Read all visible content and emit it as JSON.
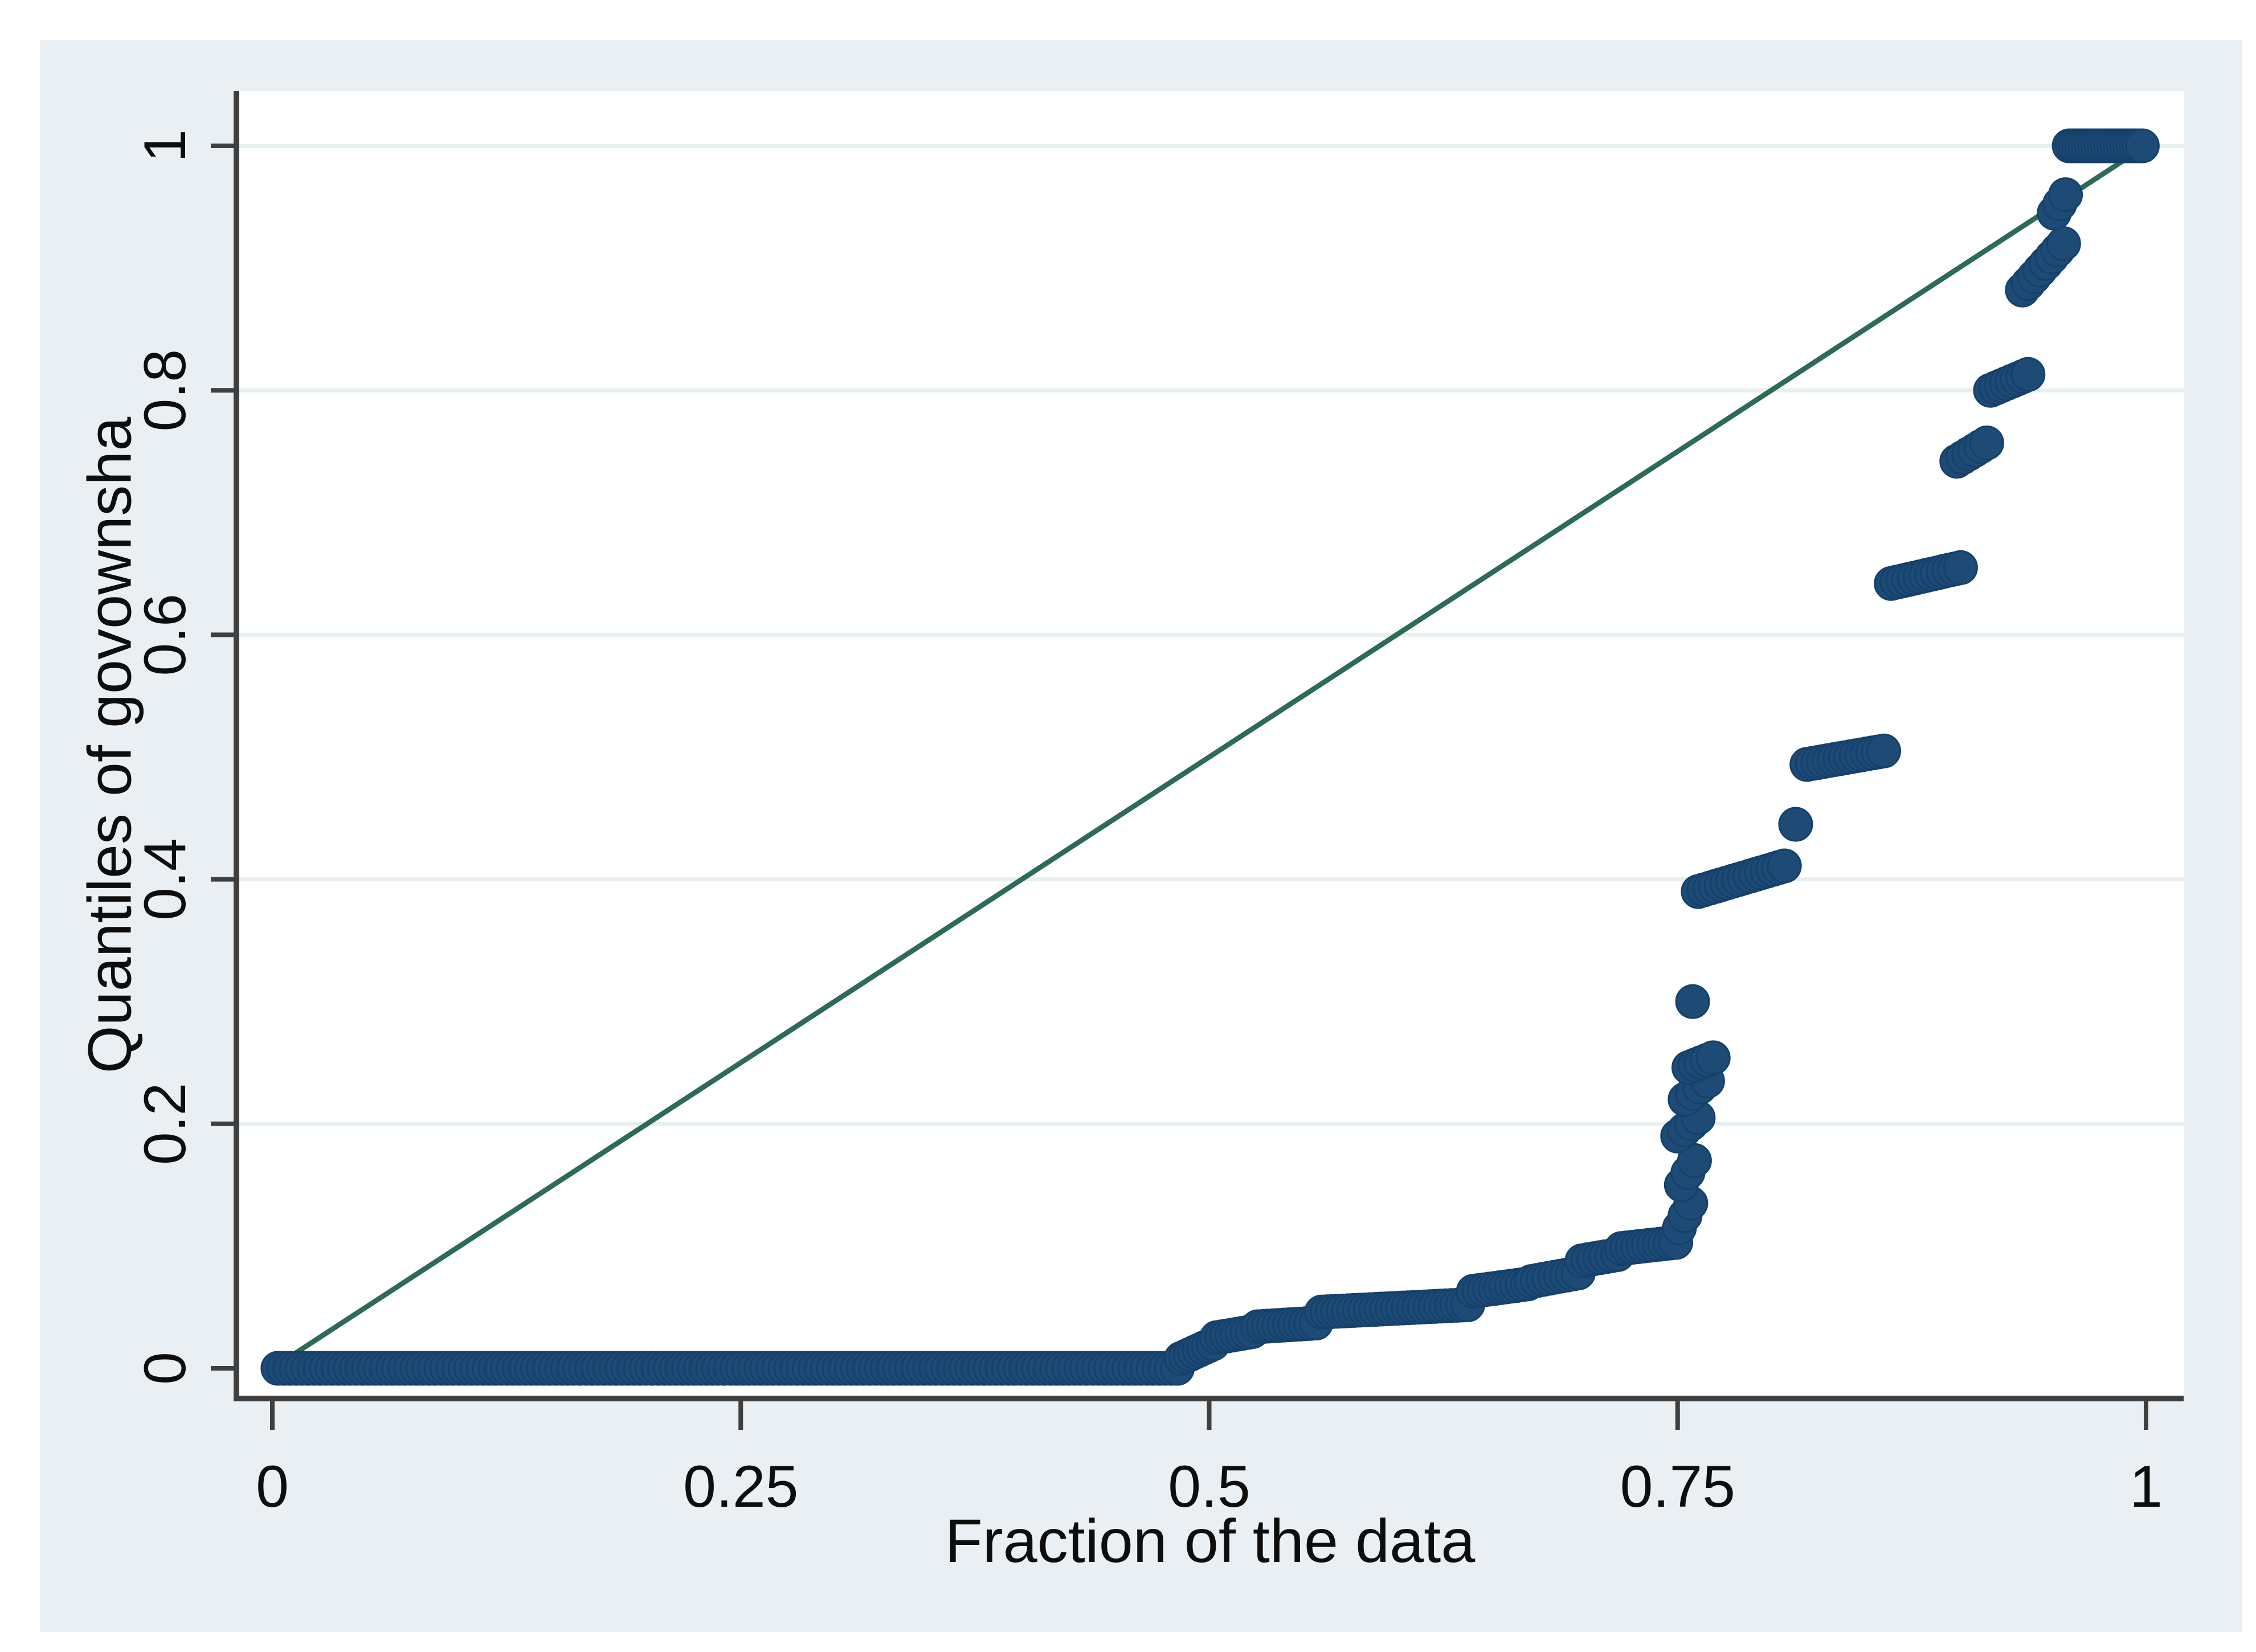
{
  "page": {
    "background": "#ffffff",
    "canvas_background": "#e9eff2",
    "plot_background": "#ffffff",
    "axis_color": "#3f3f3f",
    "grid_color": "#e7eff2",
    "text_color": "#0d0d0d"
  },
  "chart_data": {
    "type": "scatter",
    "subtype": "quantile-plot",
    "title": "",
    "xlabel": "Fraction of the data",
    "ylabel": "Quantiles of govownsha",
    "xlim": [
      0,
      1
    ],
    "ylim": [
      0,
      1
    ],
    "x_ticks": [
      0,
      0.25,
      0.5,
      0.75,
      1
    ],
    "x_tick_labels": [
      "0",
      "0.25",
      "0.5",
      "0.75",
      "1"
    ],
    "y_ticks": [
      0,
      0.2,
      0.4,
      0.6,
      0.8,
      1
    ],
    "y_tick_labels": [
      "0",
      "0.2",
      "0.4",
      "0.6",
      "0.8",
      "1"
    ],
    "grid": "horizontal-only",
    "legend": "none",
    "reference_line": {
      "name": "45-degree reference line (y = x)",
      "from": [
        0,
        0
      ],
      "to": [
        1,
        1
      ],
      "color": "#2d6a57"
    },
    "series": [
      {
        "name": "govownsha quantiles",
        "marker": "filled-circle",
        "color": "#1d4b76",
        "marker_edge_color": "#15406b",
        "description": "Empirical quantile step function: about 48% of the data equals 0; values rise slowly to ~0.10 by the 75th percentile, then jump through plateaus near 0.2, 0.25, 0.4, 0.5, 0.65, 0.75, 0.8 and 0.9, reaching 1.0 for roughly the top 4% of the data.",
        "segments": [
          {
            "f0": 0.003,
            "f1": 0.483,
            "q0": 0.0,
            "q1": 0.0,
            "n": 150
          },
          {
            "f0": 0.485,
            "f1": 0.502,
            "q0": 0.008,
            "q1": 0.02,
            "n": 8
          },
          {
            "f0": 0.504,
            "f1": 0.523,
            "q0": 0.025,
            "q1": 0.03,
            "n": 8
          },
          {
            "f0": 0.526,
            "f1": 0.557,
            "q0": 0.034,
            "q1": 0.037,
            "n": 12
          },
          {
            "f0": 0.56,
            "f1": 0.638,
            "q0": 0.046,
            "q1": 0.052,
            "n": 28
          },
          {
            "f0": 0.641,
            "f1": 0.67,
            "q0": 0.063,
            "q1": 0.069,
            "n": 11
          },
          {
            "f0": 0.672,
            "f1": 0.697,
            "q0": 0.071,
            "q1": 0.078,
            "n": 9
          },
          {
            "f0": 0.699,
            "f1": 0.718,
            "q0": 0.088,
            "q1": 0.093,
            "n": 7
          },
          {
            "f0": 0.72,
            "f1": 0.749,
            "q0": 0.098,
            "q1": 0.103,
            "n": 11
          },
          {
            "f0": 0.751,
            "f1": 0.757,
            "q0": 0.115,
            "q1": 0.135,
            "n": 3
          },
          {
            "f0": 0.752,
            "f1": 0.759,
            "q0": 0.15,
            "q1": 0.17,
            "n": 3
          },
          {
            "f0": 0.75,
            "f1": 0.761,
            "q0": 0.19,
            "q1": 0.205,
            "n": 4
          },
          {
            "f0": 0.754,
            "f1": 0.766,
            "q0": 0.22,
            "q1": 0.235,
            "n": 4
          },
          {
            "f0": 0.756,
            "f1": 0.769,
            "q0": 0.246,
            "q1": 0.254,
            "n": 5
          },
          {
            "f0": 0.758,
            "f1": 0.758,
            "q0": 0.3,
            "q1": 0.3,
            "n": 1
          },
          {
            "f0": 0.761,
            "f1": 0.807,
            "q0": 0.39,
            "q1": 0.411,
            "n": 16
          },
          {
            "f0": 0.813,
            "f1": 0.813,
            "q0": 0.445,
            "q1": 0.445,
            "n": 1
          },
          {
            "f0": 0.819,
            "f1": 0.86,
            "q0": 0.494,
            "q1": 0.505,
            "n": 15
          },
          {
            "f0": 0.864,
            "f1": 0.901,
            "q0": 0.642,
            "q1": 0.655,
            "n": 13
          },
          {
            "f0": 0.899,
            "f1": 0.915,
            "q0": 0.742,
            "q1": 0.757,
            "n": 6
          },
          {
            "f0": 0.917,
            "f1": 0.937,
            "q0": 0.8,
            "q1": 0.813,
            "n": 8
          },
          {
            "f0": 0.934,
            "f1": 0.956,
            "q0": 0.882,
            "q1": 0.92,
            "n": 8
          },
          {
            "f0": 0.951,
            "f1": 0.957,
            "q0": 0.945,
            "q1": 0.96,
            "n": 3
          },
          {
            "f0": 0.959,
            "f1": 0.998,
            "q0": 1.0,
            "q1": 1.0,
            "n": 24
          }
        ]
      }
    ]
  }
}
